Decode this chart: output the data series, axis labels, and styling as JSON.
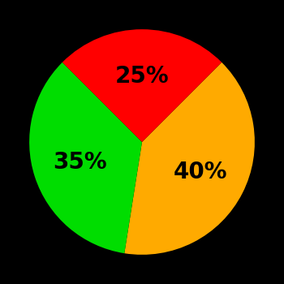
{
  "slices": [
    40,
    35,
    25
  ],
  "colors": [
    "#ffaa00",
    "#00dd00",
    "#ff0000"
  ],
  "labels": [
    "40%",
    "35%",
    "25%"
  ],
  "background_color": "#000000",
  "text_color": "#000000",
  "startangle": 45,
  "label_r": 0.58,
  "fontsize": 20,
  "figsize": [
    3.5,
    3.5
  ],
  "dpi": 100
}
